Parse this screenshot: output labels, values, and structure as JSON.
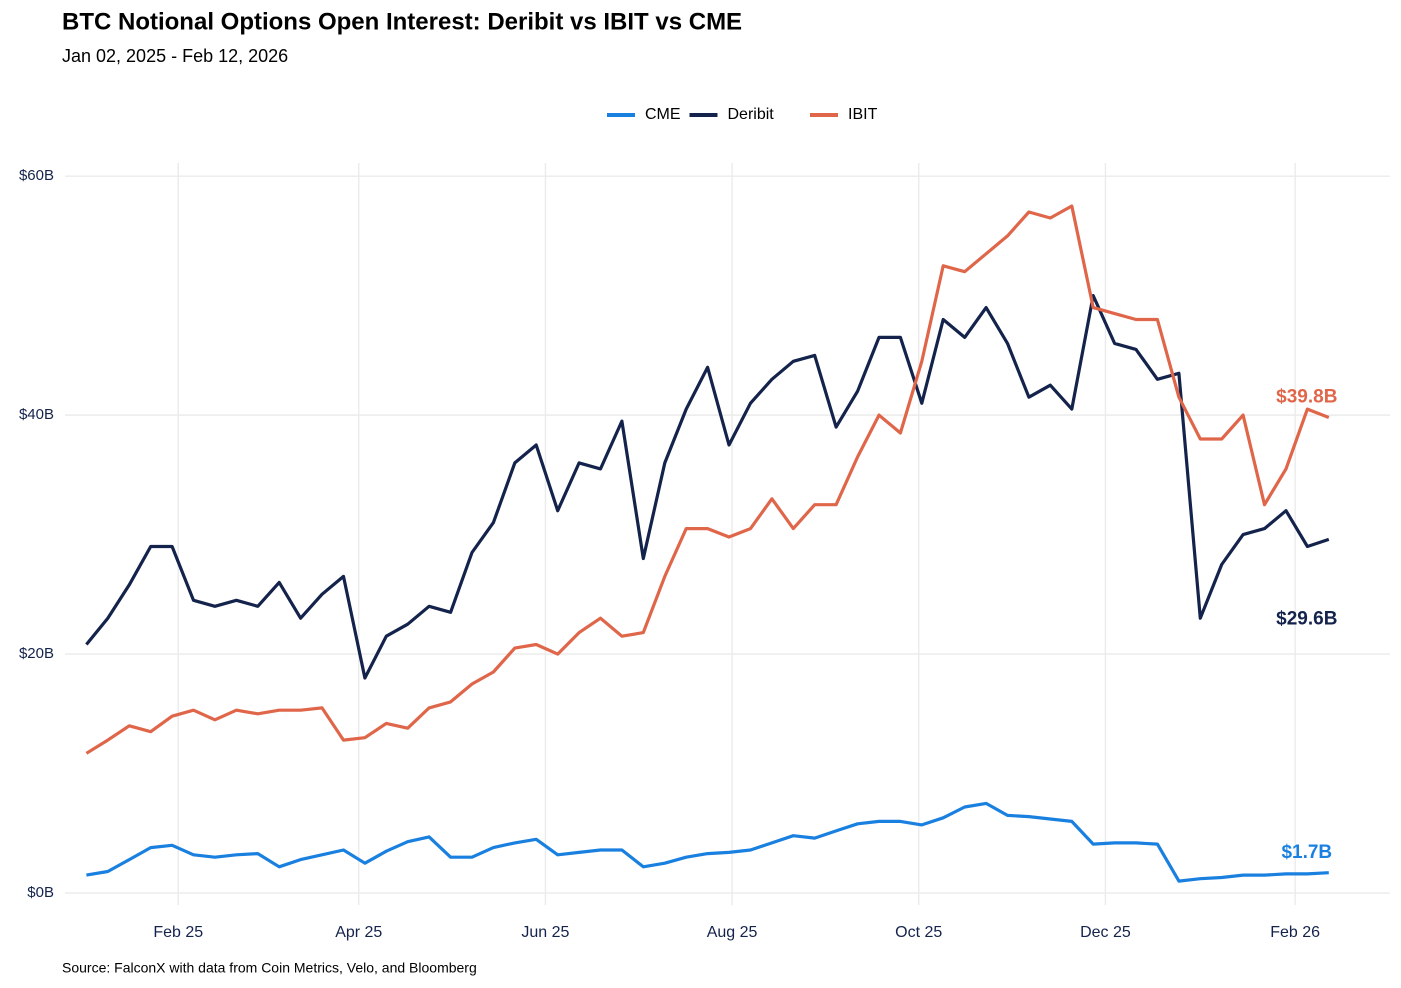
{
  "chart_data": {
    "type": "line",
    "title": "BTC Notional Options Open Interest: Deribit vs IBIT vs CME",
    "subtitle": "Jan 02, 2025 - Feb 12, 2026",
    "source": "Source: FalconX with data from Coin Metrics, Velo, and Bloomberg",
    "x": [
      "2025-01-02",
      "2025-01-09",
      "2025-01-16",
      "2025-01-23",
      "2025-01-30",
      "2025-02-06",
      "2025-02-13",
      "2025-02-20",
      "2025-02-27",
      "2025-03-06",
      "2025-03-13",
      "2025-03-20",
      "2025-03-27",
      "2025-04-03",
      "2025-04-10",
      "2025-04-17",
      "2025-04-24",
      "2025-05-01",
      "2025-05-08",
      "2025-05-15",
      "2025-05-22",
      "2025-05-29",
      "2025-06-05",
      "2025-06-12",
      "2025-06-19",
      "2025-06-26",
      "2025-07-03",
      "2025-07-10",
      "2025-07-17",
      "2025-07-24",
      "2025-07-31",
      "2025-08-07",
      "2025-08-14",
      "2025-08-21",
      "2025-08-28",
      "2025-09-04",
      "2025-09-11",
      "2025-09-18",
      "2025-09-25",
      "2025-10-02",
      "2025-10-09",
      "2025-10-16",
      "2025-10-23",
      "2025-10-30",
      "2025-11-06",
      "2025-11-13",
      "2025-11-20",
      "2025-11-27",
      "2025-12-04",
      "2025-12-11",
      "2025-12-18",
      "2025-12-25",
      "2026-01-01",
      "2026-01-08",
      "2026-01-15",
      "2026-01-22",
      "2026-01-29",
      "2026-02-05",
      "2026-02-12"
    ],
    "series": [
      {
        "name": "CME",
        "color": "#1a80e0",
        "values": [
          1.5,
          1.8,
          2.8,
          3.8,
          4.0,
          3.2,
          3.0,
          3.2,
          3.3,
          2.2,
          2.8,
          3.2,
          3.6,
          2.5,
          3.5,
          4.3,
          4.7,
          3.0,
          3.0,
          3.8,
          4.2,
          4.5,
          3.2,
          3.4,
          3.6,
          3.6,
          2.2,
          2.5,
          3.0,
          3.3,
          3.4,
          3.6,
          4.2,
          4.8,
          4.6,
          5.2,
          5.8,
          6.0,
          6.0,
          5.7,
          6.3,
          7.2,
          7.5,
          6.5,
          6.4,
          6.2,
          6.0,
          4.1,
          4.2,
          4.2,
          4.1,
          1.0,
          1.2,
          1.3,
          1.5,
          1.5,
          1.6,
          1.6,
          1.7
        ],
        "value_labels": [
          null,
          null,
          null,
          null,
          null,
          null,
          null,
          null,
          null,
          null,
          null,
          null,
          null,
          null,
          null,
          null,
          null,
          null,
          null,
          null,
          null,
          null,
          null,
          null,
          null,
          null,
          null,
          null,
          null,
          null,
          null,
          null,
          null,
          null,
          null,
          null,
          null,
          null,
          null,
          null,
          null,
          null,
          null,
          null,
          null,
          null,
          null,
          null,
          null,
          null,
          null,
          null,
          null,
          null,
          null,
          null,
          null,
          null,
          "$1.7B"
        ]
      },
      {
        "name": "Deribit",
        "color": "#14234b",
        "values": [
          20.8,
          23,
          25.8,
          29,
          29,
          24.5,
          24,
          24.5,
          24,
          26,
          23,
          25,
          26.5,
          18,
          21.5,
          22.5,
          24,
          23.5,
          28.5,
          31,
          36,
          37.5,
          32,
          36,
          35.5,
          39.5,
          28,
          36,
          40.5,
          44,
          37.5,
          41,
          43,
          44.5,
          45,
          39,
          42,
          46.5,
          46.5,
          41,
          48,
          46.5,
          49,
          46,
          41.5,
          42.5,
          40.5,
          50,
          46,
          45.5,
          43,
          43.5,
          23,
          27.5,
          30,
          30.5,
          32,
          29,
          29.6
        ],
        "value_labels": [
          null,
          null,
          null,
          null,
          null,
          null,
          null,
          null,
          null,
          null,
          null,
          null,
          null,
          null,
          null,
          null,
          null,
          null,
          null,
          null,
          null,
          null,
          null,
          null,
          null,
          null,
          null,
          null,
          null,
          null,
          null,
          null,
          null,
          null,
          null,
          null,
          null,
          null,
          null,
          null,
          null,
          null,
          null,
          null,
          null,
          null,
          null,
          null,
          null,
          null,
          null,
          null,
          null,
          null,
          null,
          null,
          null,
          null,
          "$29.6B"
        ]
      },
      {
        "name": "IBIT",
        "color": "#e0664a",
        "values": [
          11.7,
          12.8,
          14.0,
          13.5,
          14.8,
          15.3,
          14.5,
          15.3,
          15.0,
          15.3,
          15.3,
          15.5,
          12.8,
          13.0,
          14.2,
          13.8,
          15.5,
          16.0,
          17.5,
          18.5,
          20.5,
          20.8,
          20.0,
          21.8,
          23.0,
          21.5,
          21.8,
          26.5,
          30.5,
          30.5,
          29.8,
          30.5,
          33.0,
          30.5,
          32.5,
          32.5,
          36.5,
          40.0,
          38.5,
          44.5,
          52.5,
          52.0,
          53.5,
          55.0,
          57.0,
          56.5,
          57.5,
          49.0,
          48.5,
          48.0,
          48.0,
          41.5,
          38.0,
          38.0,
          40.0,
          32.5,
          35.5,
          40.5,
          39.8
        ],
        "value_labels": [
          null,
          null,
          null,
          null,
          null,
          null,
          null,
          null,
          null,
          null,
          null,
          null,
          null,
          null,
          null,
          null,
          null,
          null,
          null,
          null,
          null,
          null,
          null,
          null,
          null,
          null,
          null,
          null,
          null,
          null,
          null,
          null,
          null,
          null,
          null,
          null,
          null,
          null,
          null,
          null,
          null,
          null,
          null,
          null,
          null,
          null,
          null,
          null,
          null,
          null,
          null,
          null,
          null,
          null,
          null,
          null,
          null,
          null,
          "$39.8B"
        ]
      }
    ],
    "xlim": [
      "2024-12-26",
      "2026-03-04"
    ],
    "xticks": [
      {
        "value": "2025-02-01",
        "label": "Feb 25"
      },
      {
        "value": "2025-04-01",
        "label": "Apr 25"
      },
      {
        "value": "2025-06-01",
        "label": "Jun 25"
      },
      {
        "value": "2025-08-01",
        "label": "Aug 25"
      },
      {
        "value": "2025-10-01",
        "label": "Oct 25"
      },
      {
        "value": "2025-12-01",
        "label": "Dec 25"
      },
      {
        "value": "2026-02-01",
        "label": "Feb 26"
      }
    ],
    "ylim": [
      -1,
      61.1
    ],
    "yticks": [
      {
        "value": 0,
        "label": "$0B"
      },
      {
        "value": 20,
        "label": "$20B"
      },
      {
        "value": 40,
        "label": "$40B"
      },
      {
        "value": 60,
        "label": "$60B"
      }
    ],
    "grid": true,
    "legend": "top"
  }
}
